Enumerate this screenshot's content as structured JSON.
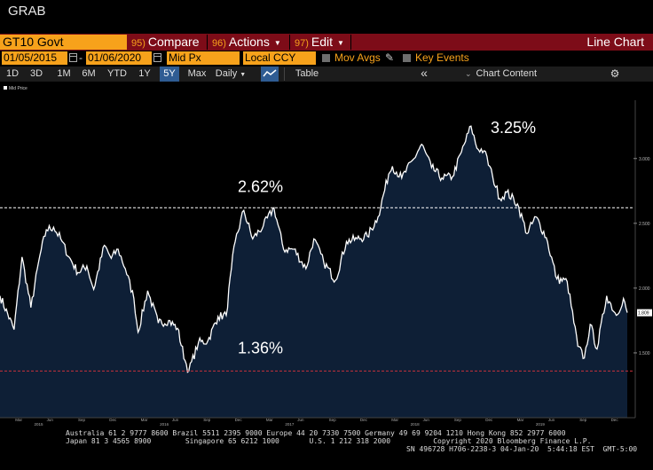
{
  "window": {
    "title": "GRAB"
  },
  "toolbar": {
    "ticker": "GT10 Govt",
    "compare": {
      "num": "95)",
      "label": "Compare"
    },
    "actions": {
      "num": "96)",
      "label": "Actions"
    },
    "edit": {
      "num": "97)",
      "label": "Edit"
    },
    "view_title": "Line Chart"
  },
  "controls": {
    "start_date": "01/05/2015",
    "end_date": "01/06/2020",
    "field": "Mid Px",
    "currency": "Local CCY",
    "mov_avgs": "Mov Avgs",
    "key_events": "Key Events"
  },
  "ranges": {
    "items": [
      "1D",
      "3D",
      "1M",
      "6M",
      "YTD",
      "1Y",
      "5Y",
      "Max"
    ],
    "active": "5Y",
    "frequency": "Daily",
    "table_label": "Table",
    "collapse_icon": "«",
    "chart_content": "Chart Content"
  },
  "colors": {
    "accent": "#f7a21b",
    "menubar": "#7d0c18",
    "area": "#0e1f36",
    "line": "#ffffff",
    "active": "#2f5c93"
  },
  "chart_data": {
    "type": "area",
    "legend": "Mid Price",
    "x": [
      "2015-01-05",
      "2015-02-15",
      "2015-03-10",
      "2015-04-05",
      "2015-05-01",
      "2015-05-20",
      "2015-06-10",
      "2015-07-01",
      "2015-07-25",
      "2015-08-20",
      "2015-09-15",
      "2015-10-05",
      "2015-11-05",
      "2015-11-25",
      "2015-12-15",
      "2016-01-05",
      "2016-01-30",
      "2016-02-11",
      "2016-03-10",
      "2016-04-10",
      "2016-05-10",
      "2016-06-05",
      "2016-06-27",
      "2016-07-08",
      "2016-08-05",
      "2016-09-01",
      "2016-10-01",
      "2016-10-25",
      "2016-11-09",
      "2016-11-20",
      "2016-12-15",
      "2017-01-10",
      "2017-02-10",
      "2017-03-13",
      "2017-04-10",
      "2017-05-10",
      "2017-06-14",
      "2017-07-07",
      "2017-08-05",
      "2017-09-08",
      "2017-10-10",
      "2017-11-10",
      "2017-12-10",
      "2018-01-10",
      "2018-02-10",
      "2018-02-21",
      "2018-03-20",
      "2018-04-25",
      "2018-05-17",
      "2018-06-15",
      "2018-07-15",
      "2018-08-15",
      "2018-09-10",
      "2018-10-08",
      "2018-10-25",
      "2018-11-15",
      "2018-12-10",
      "2018-12-31",
      "2019-01-20",
      "2019-02-20",
      "2019-03-20",
      "2019-04-15",
      "2019-05-15",
      "2019-06-15",
      "2019-07-15",
      "2019-08-15",
      "2019-09-03",
      "2019-09-20",
      "2019-10-10",
      "2019-11-07",
      "2019-12-05",
      "2019-12-26",
      "2020-01-06"
    ],
    "y": [
      1.94,
      1.68,
      2.24,
      1.85,
      2.25,
      2.45,
      2.47,
      2.38,
      2.24,
      2.12,
      2.17,
      1.99,
      2.33,
      2.23,
      2.3,
      2.15,
      1.92,
      1.66,
      1.98,
      1.73,
      1.75,
      1.69,
      1.44,
      1.36,
      1.58,
      1.59,
      1.78,
      1.79,
      2.15,
      2.36,
      2.6,
      2.38,
      2.48,
      2.62,
      2.3,
      2.3,
      2.15,
      2.38,
      2.2,
      2.06,
      2.36,
      2.38,
      2.4,
      2.55,
      2.88,
      2.94,
      2.85,
      3.0,
      3.11,
      2.93,
      2.85,
      2.86,
      3.05,
      3.25,
      3.08,
      3.06,
      2.86,
      2.69,
      2.74,
      2.65,
      2.42,
      2.55,
      2.39,
      2.07,
      2.05,
      1.55,
      1.46,
      1.72,
      1.53,
      1.94,
      1.79,
      1.92,
      1.81
    ],
    "y_ticks": [
      "1.500",
      "2.000",
      "2.500",
      "3.000"
    ],
    "ylim": [
      1.0,
      3.45
    ],
    "last_value": "1.809",
    "x_month_ticks": [
      "Mar",
      "Jun",
      "Sep",
      "Dec",
      "Mar",
      "Jun",
      "Sep",
      "Dec",
      "Mar",
      "Jun",
      "Sep",
      "Dec",
      "Mar",
      "Jun",
      "Sep",
      "Dec",
      "Mar",
      "Jun",
      "Sep",
      "Dec"
    ],
    "x_year_labels": [
      "2015",
      "2016",
      "2017",
      "2018",
      "2019"
    ],
    "annotations": [
      {
        "text": "3.25%",
        "value": 3.25
      },
      {
        "text": "2.62%",
        "value": 2.62
      },
      {
        "text": "1.36%",
        "value": 1.36
      }
    ],
    "hlines": [
      {
        "value": 2.62,
        "color": "#ffffff"
      },
      {
        "value": 1.36,
        "color": "#c8323c"
      }
    ],
    "grid": false
  },
  "footer": {
    "line1": "Australia 61 2 9777 8600 Brazil 5511 2395 9000 Europe 44 20 7330 7500 Germany 49 69 9204 1210 Hong Kong 852 2977 6000",
    "line2": "Japan 81 3 4565 8900        Singapore 65 6212 1000       U.S. 1 212 318 2000          Copyright 2020 Bloomberg Finance L.P.",
    "line3": "SN 496728 H706-2238-3 04-Jan-20  5:44:18 EST  GMT-5:00"
  }
}
